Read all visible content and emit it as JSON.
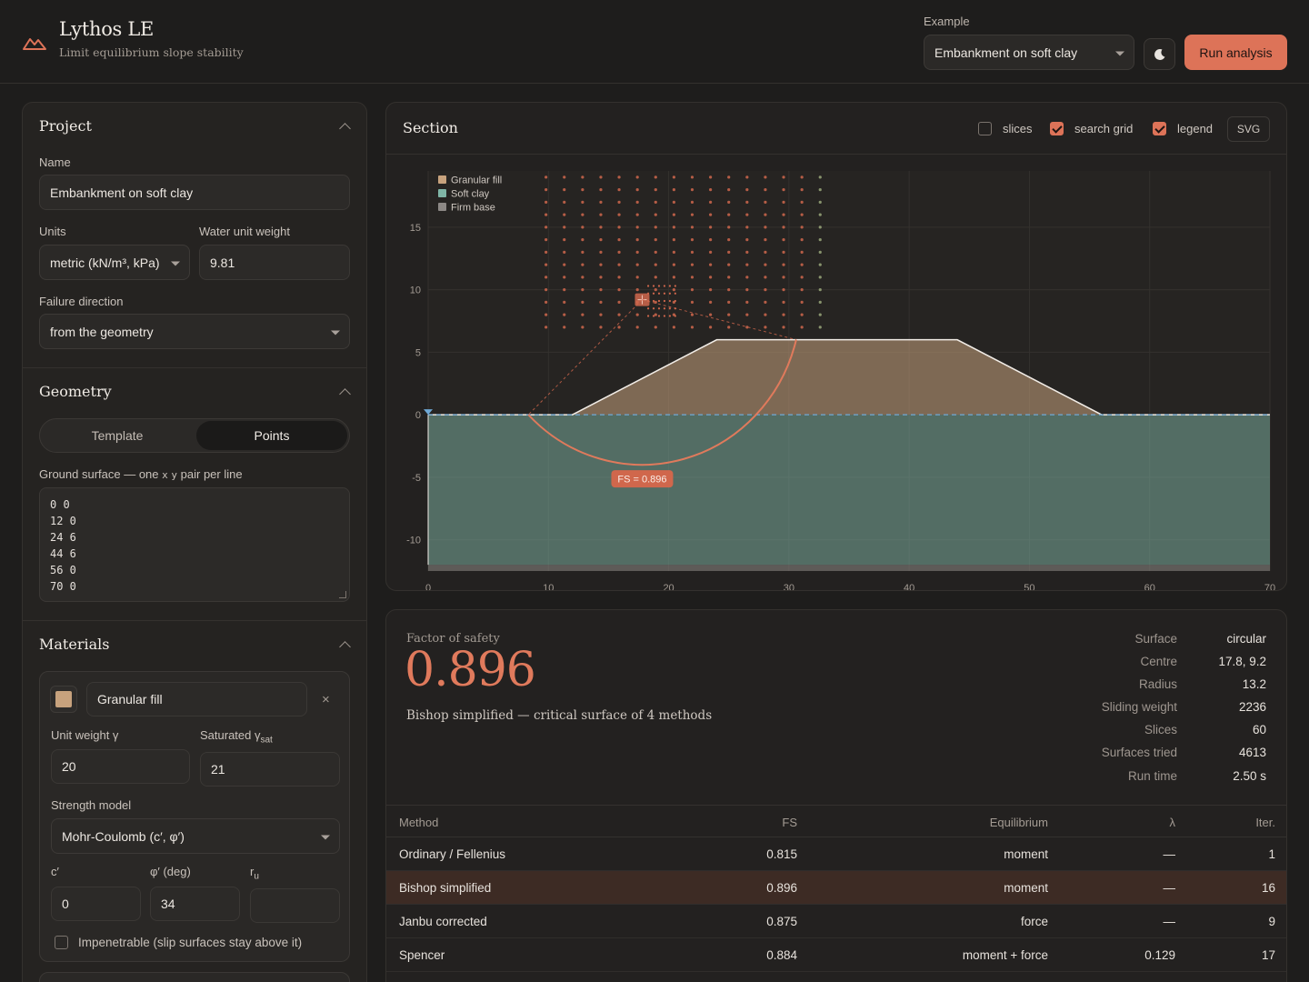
{
  "header": {
    "app_title": "Lythos LE",
    "app_subtitle": "Limit equilibrium slope stability",
    "example_label": "Example",
    "example_value": "Embankment on soft clay",
    "run_label": "Run analysis",
    "theme_icon": "moon-icon",
    "logo_icon": "mountain-icon",
    "accent_color": "#dd7358"
  },
  "project": {
    "title": "Project",
    "name_label": "Name",
    "name_value": "Embankment on soft clay",
    "units_label": "Units",
    "units_value": "metric (kN/m³, kPa)",
    "water_label": "Water unit weight",
    "water_value": "9.81",
    "failure_label": "Failure direction",
    "failure_value": "from the geometry"
  },
  "geometry": {
    "title": "Geometry",
    "tab_template": "Template",
    "tab_points": "Points",
    "active_tab": "Points",
    "ground_label_a": "Ground surface — one",
    "ground_label_x": "x",
    "ground_label_y": "y",
    "ground_label_b": "pair per line",
    "points": [
      "0 0",
      "12 0",
      "24 6",
      "44 6",
      "56 0",
      "70 0"
    ]
  },
  "materials": {
    "title": "Materials",
    "item": {
      "name": "Granular fill",
      "color": "#c7a27d",
      "remove": "×",
      "unit_weight_label": "Unit weight γ",
      "unit_weight_value": "20",
      "sat_label": "Saturated γ",
      "sat_sub": "sat",
      "sat_value": "21",
      "strength_label": "Strength model",
      "strength_value": "Mohr-Coulomb (c′, φ′)",
      "c_label": "c′",
      "c_value": "0",
      "phi_label": "φ′ (deg)",
      "phi_value": "34",
      "ru_label": "r",
      "ru_sub": "u",
      "ru_value": "",
      "impenetrable_label": "Impenetrable (slip surfaces stay above it)",
      "impenetrable": false
    }
  },
  "section": {
    "title": "Section",
    "toggles": [
      {
        "label": "slices",
        "checked": false
      },
      {
        "label": "search grid",
        "checked": true
      },
      {
        "label": "legend",
        "checked": true
      }
    ],
    "export_label": "SVG",
    "fs_tag": "FS = 0.896"
  },
  "chart_data": {
    "type": "section",
    "xlim": [
      0,
      70
    ],
    "ylim": [
      -12.5,
      19.5
    ],
    "x_ticks": [
      "0",
      "10",
      "20",
      "30",
      "40",
      "50",
      "60",
      "70"
    ],
    "y_ticks": [
      "15",
      "10",
      "5",
      "0",
      "-5",
      "-10"
    ],
    "legend": [
      {
        "name": "Granular fill",
        "color": "#c7a27d"
      },
      {
        "name": "Soft clay",
        "color": "#7fb5a6"
      },
      {
        "name": "Firm base",
        "color": "#8c8885"
      }
    ],
    "ground_surface": [
      [
        0,
        0
      ],
      [
        12,
        0
      ],
      [
        24,
        6
      ],
      [
        44,
        6
      ],
      [
        56,
        0
      ],
      [
        70,
        0
      ]
    ],
    "water_level": 0,
    "firm_base_top": -12,
    "search_grid": {
      "x_range": [
        9.8,
        32.6
      ],
      "y_range": [
        7,
        19
      ],
      "nx": 16,
      "ny": 13
    },
    "critical_circle": {
      "cx": 17.8,
      "cy": 9.2,
      "r": 13.2,
      "fs": 0.896
    },
    "grid": true,
    "legend_position": "top-left"
  },
  "results": {
    "fs_label": "Factor of safety",
    "fs_value": "0.896",
    "fs_desc": "Bishop simplified — critical surface of 4 methods",
    "stats": [
      {
        "k": "Surface",
        "v": "circular"
      },
      {
        "k": "Centre",
        "v": "17.8, 9.2"
      },
      {
        "k": "Radius",
        "v": "13.2"
      },
      {
        "k": "Sliding weight",
        "v": "2236"
      },
      {
        "k": "Slices",
        "v": "60"
      },
      {
        "k": "Surfaces tried",
        "v": "4613"
      },
      {
        "k": "Run time",
        "v": "2.50 s"
      }
    ],
    "columns": [
      "Method",
      "FS",
      "Equilibrium",
      "λ",
      "Iter."
    ],
    "rows": [
      {
        "method": "Ordinary / Fellenius",
        "fs": "0.815",
        "eq": "moment",
        "lambda": "—",
        "iter": "1",
        "highlight": false
      },
      {
        "method": "Bishop simplified",
        "fs": "0.896",
        "eq": "moment",
        "lambda": "—",
        "iter": "16",
        "highlight": true
      },
      {
        "method": "Janbu corrected",
        "fs": "0.875",
        "eq": "force",
        "lambda": "—",
        "iter": "9",
        "highlight": false
      },
      {
        "method": "Spencer",
        "fs": "0.884",
        "eq": "moment + force",
        "lambda": "0.129",
        "iter": "17",
        "highlight": false
      }
    ]
  }
}
